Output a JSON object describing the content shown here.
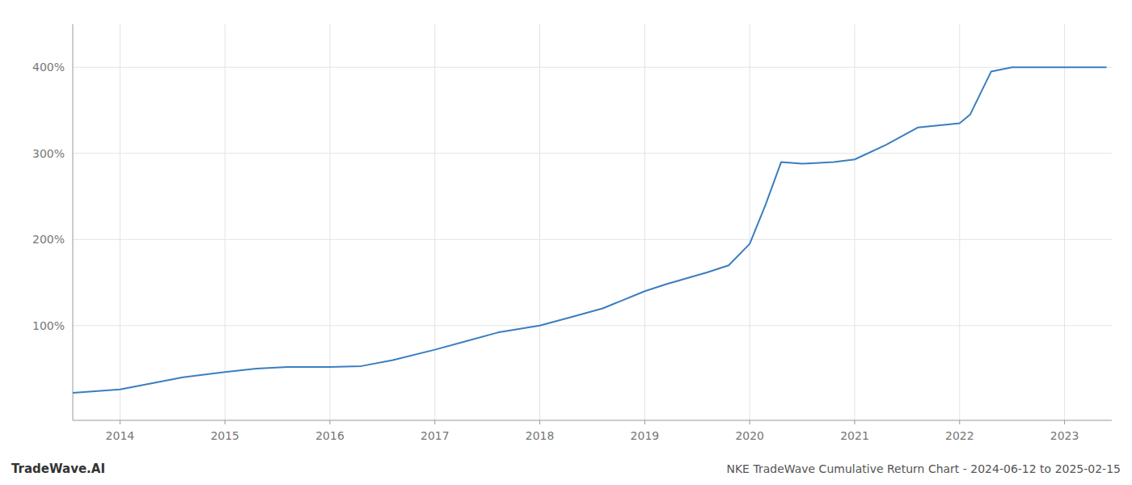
{
  "chart_data": {
    "type": "line",
    "title": "NKE TradeWave Cumulative Return Chart - 2024-06-12 to 2025-02-15",
    "annotations": [
      "TradeWave.AI"
    ],
    "x": [
      2013.55,
      2014.0,
      2014.3,
      2014.6,
      2015.0,
      2015.3,
      2015.6,
      2016.0,
      2016.3,
      2016.6,
      2017.0,
      2017.3,
      2017.6,
      2018.0,
      2018.3,
      2018.6,
      2019.0,
      2019.2,
      2019.4,
      2019.6,
      2019.8,
      2020.0,
      2020.15,
      2020.3,
      2020.5,
      2020.8,
      2021.0,
      2021.3,
      2021.6,
      2022.0,
      2022.1,
      2022.3,
      2022.5,
      2023.0,
      2023.4
    ],
    "values": [
      22,
      26,
      33,
      40,
      46,
      50,
      52,
      52,
      53,
      60,
      72,
      82,
      92,
      100,
      110,
      120,
      140,
      148,
      155,
      162,
      170,
      195,
      240,
      290,
      288,
      290,
      293,
      310,
      330,
      335,
      345,
      395,
      400,
      400,
      400
    ],
    "color": "#3a7ebf",
    "xlim": [
      2013.55,
      2023.45
    ],
    "xticks": [
      2014,
      2015,
      2016,
      2017,
      2018,
      2019,
      2020,
      2021,
      2022,
      2023
    ],
    "ylim": [
      -10,
      450
    ],
    "yticks": [
      {
        "value": 100,
        "label": "100%"
      },
      {
        "value": 200,
        "label": "200%"
      },
      {
        "value": 300,
        "label": "300%"
      },
      {
        "value": 400,
        "label": "400%"
      }
    ],
    "grid": true
  }
}
